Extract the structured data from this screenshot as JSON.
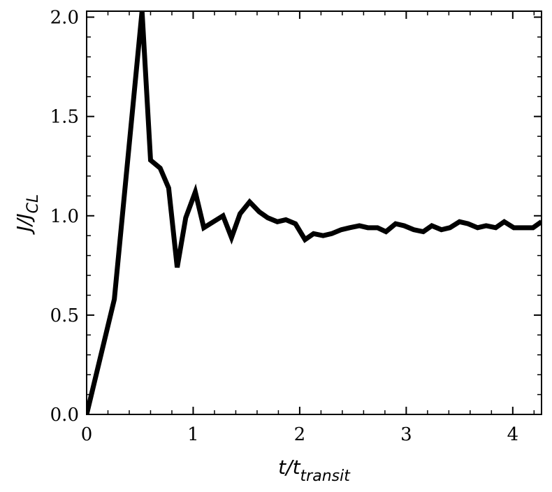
{
  "chart_data": {
    "type": "line",
    "title": "",
    "xlabel": {
      "main": "t/t",
      "sub": "transit"
    },
    "ylabel": {
      "main": "J/J",
      "sub": "CL"
    },
    "xlim": [
      0,
      4.27
    ],
    "ylim": [
      0,
      2.03
    ],
    "x_ticks": [
      0,
      1,
      2,
      3,
      4
    ],
    "x_tick_labels": [
      "0",
      "1",
      "2",
      "3",
      "4"
    ],
    "y_ticks": [
      0.0,
      0.5,
      1.0,
      1.5,
      2.0
    ],
    "y_tick_labels": [
      "0.0",
      "0.5",
      "1.0",
      "1.5",
      "2.0"
    ],
    "grid": false,
    "line_color": "#000000",
    "series": [
      {
        "x": [
          0,
          0.26,
          0.52,
          0.6,
          0.69,
          0.77,
          0.85,
          0.93,
          1.02,
          1.1,
          1.19,
          1.28,
          1.36,
          1.44,
          1.53,
          1.62,
          1.7,
          1.79,
          1.87,
          1.96,
          2.05,
          2.13,
          2.22,
          2.3,
          2.39,
          2.47,
          2.56,
          2.64,
          2.73,
          2.81,
          2.9,
          2.98,
          3.07,
          3.16,
          3.24,
          3.33,
          3.41,
          3.5,
          3.58,
          3.67,
          3.75,
          3.84,
          3.92,
          4.01,
          4.1,
          4.19,
          4.27
        ],
        "y": [
          0.0,
          0.58,
          2.03,
          1.28,
          1.24,
          1.14,
          0.74,
          0.99,
          1.12,
          0.94,
          0.97,
          1.0,
          0.89,
          1.01,
          1.07,
          1.02,
          0.99,
          0.97,
          0.98,
          0.96,
          0.88,
          0.91,
          0.9,
          0.91,
          0.93,
          0.94,
          0.95,
          0.94,
          0.94,
          0.92,
          0.96,
          0.95,
          0.93,
          0.92,
          0.95,
          0.93,
          0.94,
          0.97,
          0.96,
          0.94,
          0.95,
          0.94,
          0.97,
          0.94,
          0.94,
          0.94,
          0.97
        ]
      }
    ]
  }
}
